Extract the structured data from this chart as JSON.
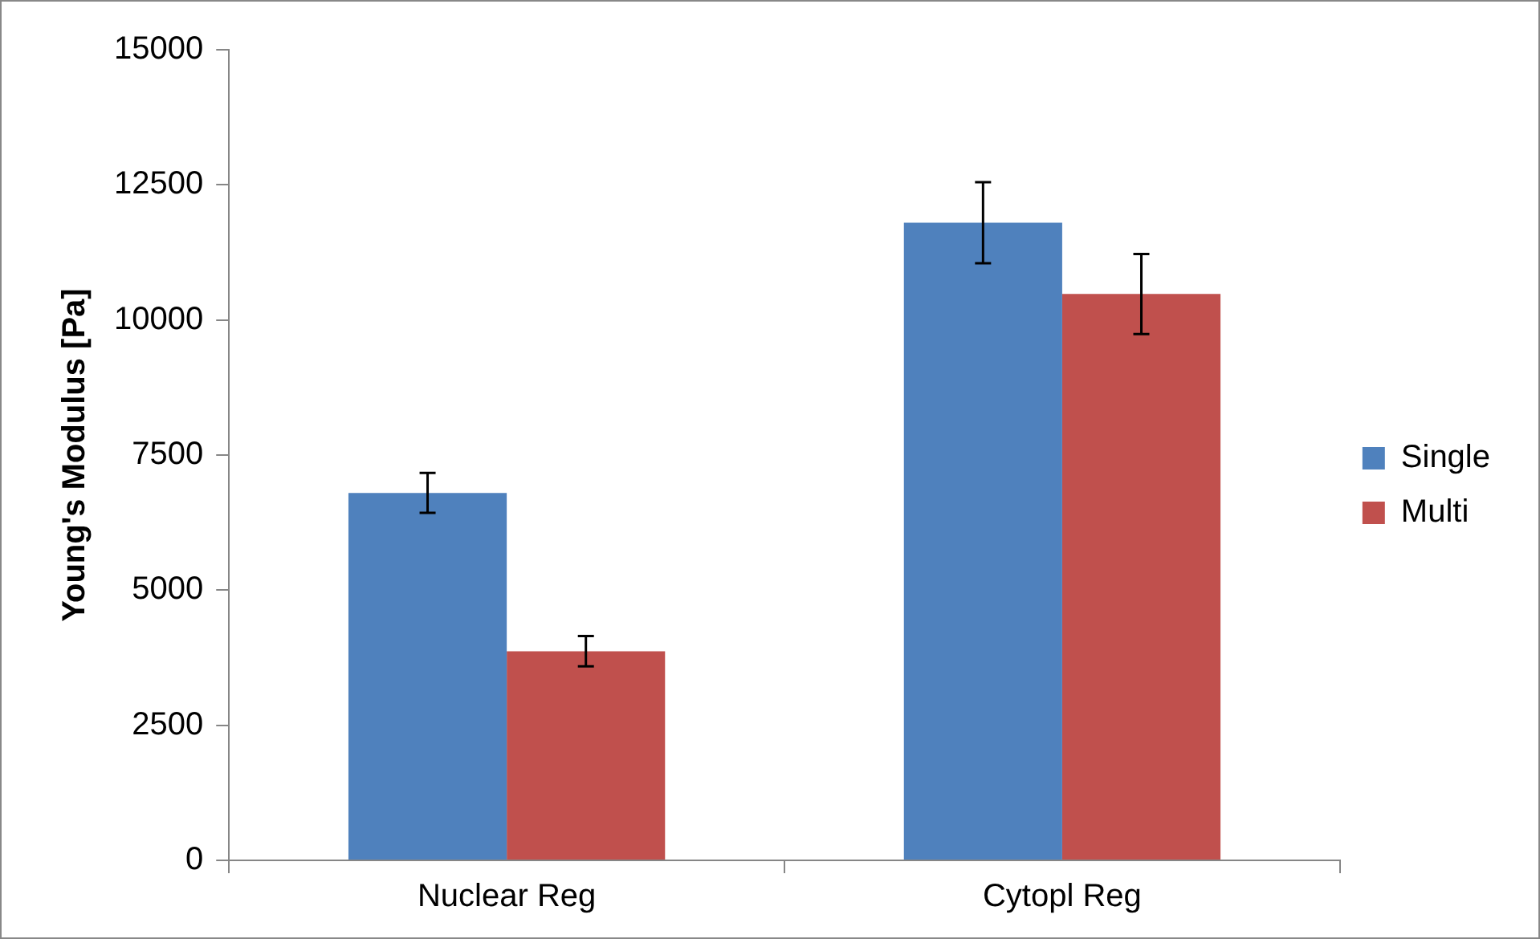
{
  "chart_data": {
    "type": "bar",
    "ylabel": "Young's Modulus [Pa]",
    "categories": [
      "Nuclear Reg",
      "Cytopl Reg"
    ],
    "series": [
      {
        "name": "Single",
        "color": "#4f81bd",
        "values": [
          6800,
          11800
        ],
        "errors": [
          370,
          750
        ]
      },
      {
        "name": "Multi",
        "color": "#c0504d",
        "values": [
          3870,
          10480
        ],
        "errors": [
          280,
          740
        ]
      }
    ],
    "ylim": [
      0,
      15000
    ],
    "yticks": [
      0,
      2500,
      5000,
      7500,
      10000,
      12500,
      15000
    ],
    "grid": false,
    "legend": "right"
  }
}
